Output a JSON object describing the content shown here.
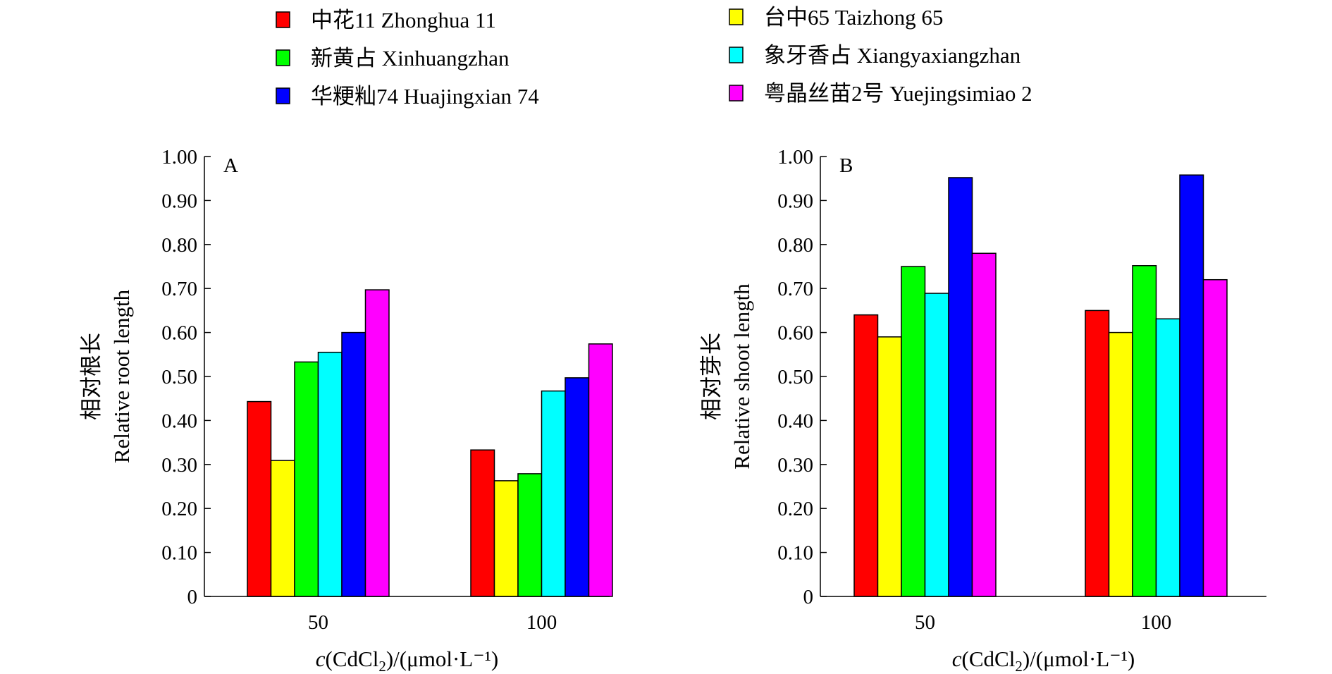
{
  "legend": [
    {
      "label": "中花11 Zhonghua 11",
      "color": "#ff0000"
    },
    {
      "label": "台中65 Taizhong 65",
      "color": "#ffff00"
    },
    {
      "label": "新黄占 Xinhuangzhan",
      "color": "#00ff00"
    },
    {
      "label": "象牙香占 Xiangyaxiangzhan",
      "color": "#00ffff"
    },
    {
      "label": "华粳籼74 Huajingxian 74",
      "color": "#0000ff"
    },
    {
      "label": "粤晶丝苗2号 Yuejingsimiao 2",
      "color": "#ff00ff"
    }
  ],
  "chart_data": [
    {
      "type": "bar",
      "panel": "A",
      "categories": [
        "50",
        "100"
      ],
      "series": [
        {
          "name": "中花11 Zhonghua 11",
          "values": [
            0.443,
            0.333
          ]
        },
        {
          "name": "台中65 Taizhong 65",
          "values": [
            0.309,
            0.263
          ]
        },
        {
          "name": "新黄占 Xinhuangzhan",
          "values": [
            0.533,
            0.279
          ]
        },
        {
          "name": "象牙香占 Xiangyaxiangzhan",
          "values": [
            0.555,
            0.467
          ]
        },
        {
          "name": "华粳籼74 Huajingxian 74",
          "values": [
            0.6,
            0.497
          ]
        },
        {
          "name": "粤晶丝苗2号 Yuejingsimiao 2",
          "values": [
            0.697,
            0.574
          ]
        }
      ],
      "ylabel_cn": "相对根长",
      "ylabel_en": "Relative root length",
      "xlabel": "c(CdCl₂)/(μmol·L⁻¹)",
      "ylim": [
        0,
        1.0
      ],
      "yticks": [
        "0",
        "0.10",
        "0.20",
        "0.30",
        "0.40",
        "0.50",
        "0.60",
        "0.70",
        "0.80",
        "0.90",
        "1.00"
      ],
      "grid": false
    },
    {
      "type": "bar",
      "panel": "B",
      "categories": [
        "50",
        "100"
      ],
      "series": [
        {
          "name": "中花11 Zhonghua 11",
          "values": [
            0.64,
            0.65
          ]
        },
        {
          "name": "台中65 Taizhong 65",
          "values": [
            0.59,
            0.6
          ]
        },
        {
          "name": "新黄占 Xinhuangzhan",
          "values": [
            0.75,
            0.752
          ]
        },
        {
          "name": "象牙香占 Xiangyaxiangzhan",
          "values": [
            0.689,
            0.631
          ]
        },
        {
          "name": "华粳籼74 Huajingxian 74",
          "values": [
            0.952,
            0.958
          ]
        },
        {
          "name": "粤晶丝苗2号 Yuejingsimiao 2",
          "values": [
            0.78,
            0.72
          ]
        }
      ],
      "ylabel_cn": "相对芽长",
      "ylabel_en": "Relative shoot length",
      "xlabel": "c(CdCl₂)/(μmol·L⁻¹)",
      "ylim": [
        0,
        1.0
      ],
      "yticks": [
        "0",
        "0.10",
        "0.20",
        "0.30",
        "0.40",
        "0.50",
        "0.60",
        "0.70",
        "0.80",
        "0.90",
        "1.00"
      ],
      "grid": false
    }
  ]
}
